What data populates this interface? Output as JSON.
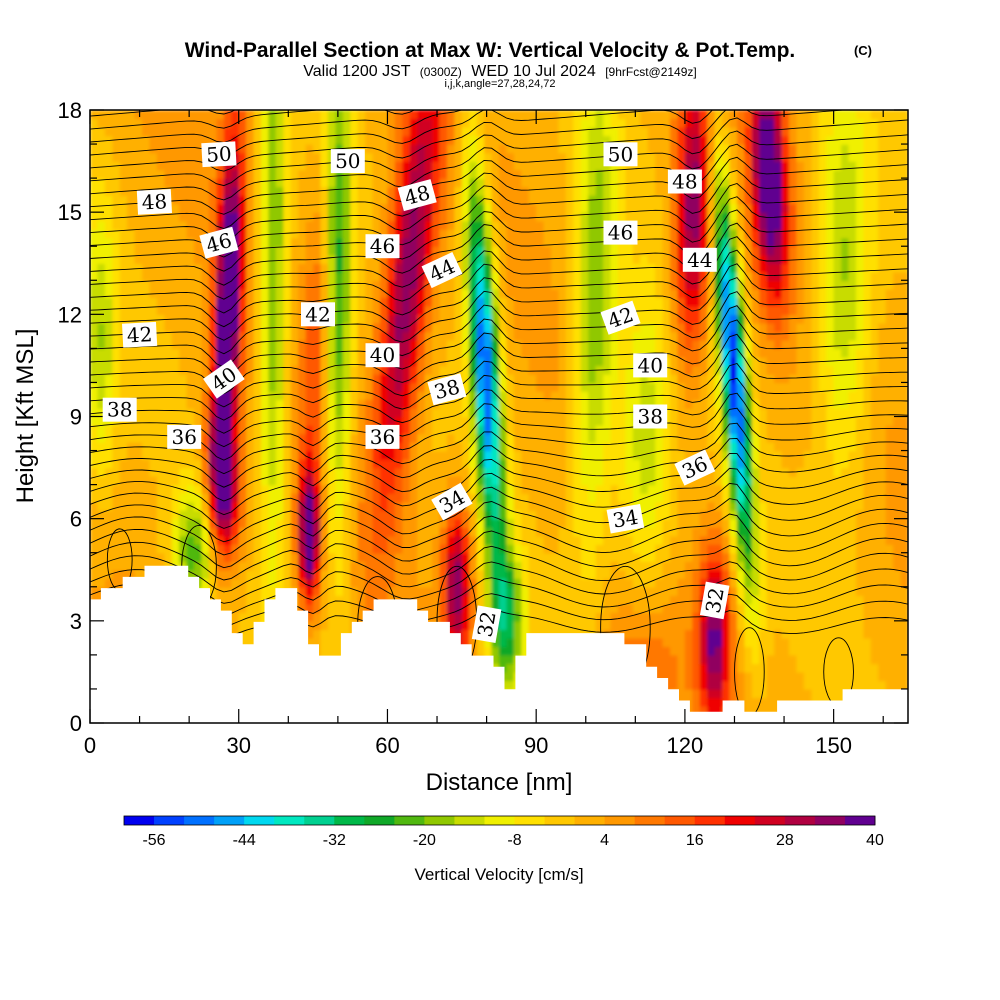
{
  "chart_data": {
    "type": "heatmap",
    "title": "Wind-Parallel Section at Max W: Vertical Velocity & Pot.Temp.",
    "title_mark": "(C)",
    "subtitle": {
      "prefix": "Valid 1200 JST",
      "zulu": "(0300Z)",
      "date": "WED 10 Jul 2024",
      "fcst": "[9hrFcst@2149z]"
    },
    "index_line": "i,j,k,angle=27,28,24,72",
    "xlabel": "Distance [nm]",
    "ylabel": "Height [Kft MSL]",
    "xlim": [
      0,
      165
    ],
    "ylim": [
      0,
      18
    ],
    "x_ticks": [
      "0",
      "30",
      "60",
      "90",
      "120",
      "150"
    ],
    "y_ticks": [
      "0",
      "3",
      "6",
      "9",
      "12",
      "15",
      "18"
    ],
    "colorbar": {
      "label": "Vertical Velocity [cm/s]",
      "tick_labels": [
        "-56",
        "-44",
        "-32",
        "-20",
        "-8",
        "4",
        "16",
        "28",
        "40"
      ],
      "min": -60,
      "step": 4,
      "colors": [
        "#0000f0",
        "#0040ff",
        "#0070ff",
        "#00a0f8",
        "#00d8f0",
        "#00e8c0",
        "#00d090",
        "#00b848",
        "#10a828",
        "#50b810",
        "#90c800",
        "#c8dc00",
        "#f0f000",
        "#ffe000",
        "#ffc800",
        "#ffb000",
        "#ff9800",
        "#ff7800",
        "#ff5800",
        "#ff3000",
        "#f00000",
        "#d00020",
        "#b00040",
        "#900060",
        "#600090"
      ]
    },
    "theta_contours": {
      "units": "C",
      "labels": [
        {
          "text": "50",
          "x": 26,
          "z": 16.7,
          "rot": -3
        },
        {
          "text": "48",
          "x": 13,
          "z": 15.3,
          "rot": -3
        },
        {
          "text": "46",
          "x": 26,
          "z": 14.1,
          "rot": -15
        },
        {
          "text": "42",
          "x": 10,
          "z": 11.4,
          "rot": -3
        },
        {
          "text": "40",
          "x": 27,
          "z": 10.1,
          "rot": -35
        },
        {
          "text": "38",
          "x": 6,
          "z": 9.2,
          "rot": 0
        },
        {
          "text": "36",
          "x": 19,
          "z": 8.4,
          "rot": 0
        },
        {
          "text": "50",
          "x": 52,
          "z": 16.5,
          "rot": 0
        },
        {
          "text": "42",
          "x": 46,
          "z": 12.0,
          "rot": 0
        },
        {
          "text": "46",
          "x": 59,
          "z": 14.0,
          "rot": 0
        },
        {
          "text": "40",
          "x": 59,
          "z": 10.8,
          "rot": 0
        },
        {
          "text": "36",
          "x": 59,
          "z": 8.4,
          "rot": 0
        },
        {
          "text": "48",
          "x": 66,
          "z": 15.5,
          "rot": -15
        },
        {
          "text": "44",
          "x": 71,
          "z": 13.3,
          "rot": -25
        },
        {
          "text": "38",
          "x": 72,
          "z": 9.8,
          "rot": -15
        },
        {
          "text": "34",
          "x": 73,
          "z": 6.5,
          "rot": -30
        },
        {
          "text": "32",
          "x": 80,
          "z": 2.9,
          "rot": -80
        },
        {
          "text": "50",
          "x": 107,
          "z": 16.7,
          "rot": 0
        },
        {
          "text": "48",
          "x": 120,
          "z": 15.9,
          "rot": 0
        },
        {
          "text": "46",
          "x": 107,
          "z": 14.4,
          "rot": 0
        },
        {
          "text": "44",
          "x": 123,
          "z": 13.6,
          "rot": 0
        },
        {
          "text": "42",
          "x": 107,
          "z": 11.9,
          "rot": -20
        },
        {
          "text": "40",
          "x": 113,
          "z": 10.5,
          "rot": 0
        },
        {
          "text": "38",
          "x": 113,
          "z": 9.0,
          "rot": 0
        },
        {
          "text": "36",
          "x": 122,
          "z": 7.5,
          "rot": -25
        },
        {
          "text": "34",
          "x": 108,
          "z": 6.0,
          "rot": -10
        },
        {
          "text": "32",
          "x": 126,
          "z": 3.6,
          "rot": -80
        }
      ]
    },
    "terrain_kft": [
      [
        0,
        3.7
      ],
      [
        3,
        3.9
      ],
      [
        6,
        4.2
      ],
      [
        9,
        4.4
      ],
      [
        12,
        4.6
      ],
      [
        16,
        4.6
      ],
      [
        19,
        4.4
      ],
      [
        22,
        4.0
      ],
      [
        25,
        3.7
      ],
      [
        27,
        3.3
      ],
      [
        29,
        2.3
      ],
      [
        31,
        2.3
      ],
      [
        32,
        3.0
      ],
      [
        34,
        3.0
      ],
      [
        36,
        4.0
      ],
      [
        40,
        4.0
      ],
      [
        42,
        3.3
      ],
      [
        43,
        2.6
      ],
      [
        45,
        2.3
      ],
      [
        47,
        2.0
      ],
      [
        49,
        2.0
      ],
      [
        51,
        2.7
      ],
      [
        53,
        2.9
      ],
      [
        55,
        3.3
      ],
      [
        57,
        3.5
      ],
      [
        60,
        3.7
      ],
      [
        63,
        3.6
      ],
      [
        66,
        3.3
      ],
      [
        69,
        3.0
      ],
      [
        72,
        2.6
      ],
      [
        75,
        2.3
      ],
      [
        78,
        2.0
      ],
      [
        81,
        1.7
      ],
      [
        83,
        1.0
      ],
      [
        85,
        1.5
      ],
      [
        86,
        2.0
      ],
      [
        88,
        2.7
      ],
      [
        91,
        2.7
      ],
      [
        93,
        2.5
      ],
      [
        96,
        2.5
      ],
      [
        100,
        2.6
      ],
      [
        103,
        2.7
      ],
      [
        106,
        2.6
      ],
      [
        109,
        2.3
      ],
      [
        111,
        2.0
      ],
      [
        113,
        1.6
      ],
      [
        115,
        1.3
      ],
      [
        117,
        1.0
      ],
      [
        119,
        0.6
      ],
      [
        121,
        0.3
      ],
      [
        123,
        0.3
      ],
      [
        126,
        0.3
      ],
      [
        128,
        0.6
      ],
      [
        131,
        0.6
      ],
      [
        133,
        0.3
      ],
      [
        136,
        0.3
      ],
      [
        139,
        0.6
      ],
      [
        142,
        0.6
      ],
      [
        145,
        0.6
      ],
      [
        148,
        0.6
      ],
      [
        151,
        0.9
      ],
      [
        154,
        1.0
      ],
      [
        157,
        0.9
      ],
      [
        160,
        1.0
      ],
      [
        163,
        1.0
      ],
      [
        165,
        1.0
      ]
    ]
  }
}
